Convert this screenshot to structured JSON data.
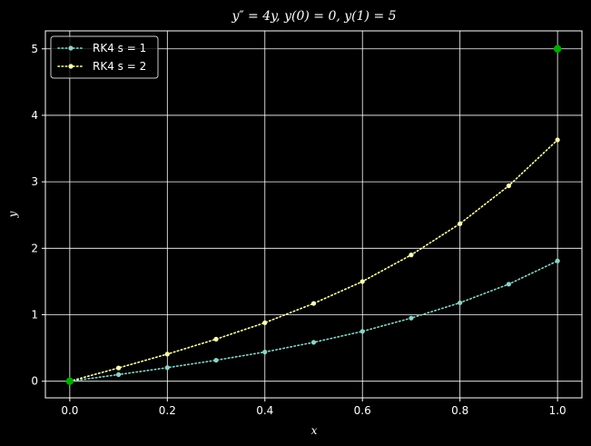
{
  "chart_data": {
    "type": "line",
    "title": "y″ = 4y, y(0) = 0, y(1) = 5",
    "xlabel": "x",
    "ylabel": "y",
    "xlim": [
      -0.05,
      1.05
    ],
    "ylim": [
      -0.25,
      5.27
    ],
    "xticks": [
      0.0,
      0.2,
      0.4,
      0.6,
      0.8,
      1.0
    ],
    "xtick_labels": [
      "0.0",
      "0.2",
      "0.4",
      "0.6",
      "0.8",
      "1.0"
    ],
    "yticks": [
      0,
      1,
      2,
      3,
      4,
      5
    ],
    "ytick_labels": [
      "0",
      "1",
      "2",
      "3",
      "4",
      "5"
    ],
    "grid": true,
    "legend_position": "top-left",
    "background": "#000000",
    "series": [
      {
        "name": "RK4 s = 1",
        "color": "#8dd3c7",
        "linestyle": "dotted",
        "marker": "circle",
        "x": [
          0.0,
          0.1,
          0.2,
          0.3,
          0.4,
          0.5,
          0.6,
          0.7,
          0.8,
          0.9,
          1.0
        ],
        "y": [
          0.0,
          0.1,
          0.204,
          0.316,
          0.44,
          0.585,
          0.75,
          0.95,
          1.18,
          1.46,
          1.81
        ]
      },
      {
        "name": "RK4 s = 2",
        "color": "#ffffb3",
        "linestyle": "dotted",
        "marker": "circle",
        "x": [
          0.0,
          0.1,
          0.2,
          0.3,
          0.4,
          0.5,
          0.6,
          0.7,
          0.8,
          0.9,
          1.0
        ],
        "y": [
          0.0,
          0.2,
          0.408,
          0.633,
          0.88,
          1.17,
          1.5,
          1.9,
          2.37,
          2.94,
          3.63
        ]
      }
    ],
    "boundary_points": [
      {
        "x": 0.0,
        "y": 0.0,
        "color": "#00aa00"
      },
      {
        "x": 1.0,
        "y": 5.0,
        "color": "#00aa00"
      }
    ]
  }
}
